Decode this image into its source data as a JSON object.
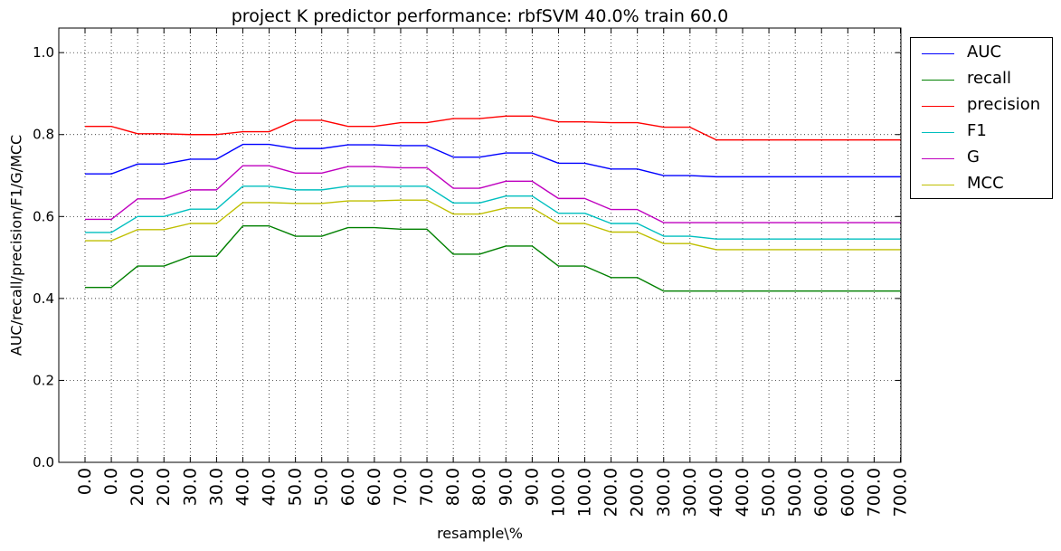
{
  "chart_data": {
    "type": "line",
    "title": "project K predictor performance: rbfSVM 40.0% train 60.0",
    "xlabel": "resample\\%",
    "ylabel": "AUC/recall/precision/F1/G/MCC",
    "categories": [
      "0.0",
      "0.0",
      "20.0",
      "20.0",
      "30.0",
      "30.0",
      "40.0",
      "40.0",
      "50.0",
      "50.0",
      "60.0",
      "60.0",
      "70.0",
      "70.0",
      "80.0",
      "80.0",
      "90.0",
      "90.0",
      "100.0",
      "100.0",
      "200.0",
      "200.0",
      "300.0",
      "300.0",
      "400.0",
      "400.0",
      "500.0",
      "500.0",
      "600.0",
      "600.0",
      "700.0",
      "700.0"
    ],
    "ylim": [
      0.0,
      1.06
    ],
    "yticks": [
      "0.0",
      "0.2",
      "0.4",
      "0.6",
      "0.8",
      "1.0"
    ],
    "grid": true,
    "legend_position": "outside-top-right",
    "series": [
      {
        "name": "AUC",
        "color": "#0000ff",
        "values": [
          0.704,
          0.704,
          0.728,
          0.728,
          0.74,
          0.74,
          0.776,
          0.776,
          0.766,
          0.766,
          0.775,
          0.775,
          0.773,
          0.773,
          0.745,
          0.745,
          0.755,
          0.755,
          0.73,
          0.73,
          0.716,
          0.716,
          0.7,
          0.7,
          0.697,
          0.697,
          0.697,
          0.697,
          0.697,
          0.697,
          0.697,
          0.697
        ]
      },
      {
        "name": "recall",
        "color": "#008000",
        "values": [
          0.427,
          0.427,
          0.479,
          0.479,
          0.503,
          0.503,
          0.577,
          0.577,
          0.552,
          0.552,
          0.573,
          0.573,
          0.569,
          0.569,
          0.508,
          0.508,
          0.528,
          0.528,
          0.479,
          0.479,
          0.451,
          0.451,
          0.418,
          0.418,
          0.418,
          0.418,
          0.418,
          0.418,
          0.418,
          0.418,
          0.418,
          0.418
        ]
      },
      {
        "name": "precision",
        "color": "#ff0000",
        "values": [
          0.82,
          0.82,
          0.802,
          0.802,
          0.8,
          0.8,
          0.807,
          0.807,
          0.835,
          0.835,
          0.82,
          0.82,
          0.829,
          0.829,
          0.839,
          0.839,
          0.845,
          0.845,
          0.831,
          0.831,
          0.829,
          0.829,
          0.818,
          0.818,
          0.787,
          0.787,
          0.787,
          0.787,
          0.787,
          0.787,
          0.787,
          0.787
        ]
      },
      {
        "name": "F1",
        "color": "#00bfbf",
        "values": [
          0.561,
          0.561,
          0.6,
          0.6,
          0.618,
          0.618,
          0.674,
          0.674,
          0.665,
          0.665,
          0.674,
          0.674,
          0.674,
          0.674,
          0.633,
          0.633,
          0.65,
          0.65,
          0.608,
          0.608,
          0.583,
          0.583,
          0.552,
          0.552,
          0.545,
          0.545,
          0.545,
          0.545,
          0.545,
          0.545,
          0.545,
          0.545
        ]
      },
      {
        "name": "G",
        "color": "#bf00bf",
        "values": [
          0.593,
          0.593,
          0.643,
          0.643,
          0.665,
          0.665,
          0.724,
          0.724,
          0.706,
          0.706,
          0.722,
          0.722,
          0.719,
          0.719,
          0.669,
          0.669,
          0.686,
          0.686,
          0.644,
          0.644,
          0.617,
          0.617,
          0.585,
          0.585,
          0.585,
          0.585,
          0.585,
          0.585,
          0.585,
          0.585,
          0.585,
          0.585
        ]
      },
      {
        "name": "MCC",
        "color": "#bfbf00",
        "values": [
          0.541,
          0.541,
          0.568,
          0.568,
          0.583,
          0.583,
          0.634,
          0.634,
          0.632,
          0.632,
          0.638,
          0.638,
          0.64,
          0.64,
          0.606,
          0.606,
          0.621,
          0.621,
          0.583,
          0.583,
          0.562,
          0.562,
          0.534,
          0.534,
          0.519,
          0.519,
          0.519,
          0.519,
          0.519,
          0.519,
          0.519,
          0.519
        ]
      }
    ]
  }
}
